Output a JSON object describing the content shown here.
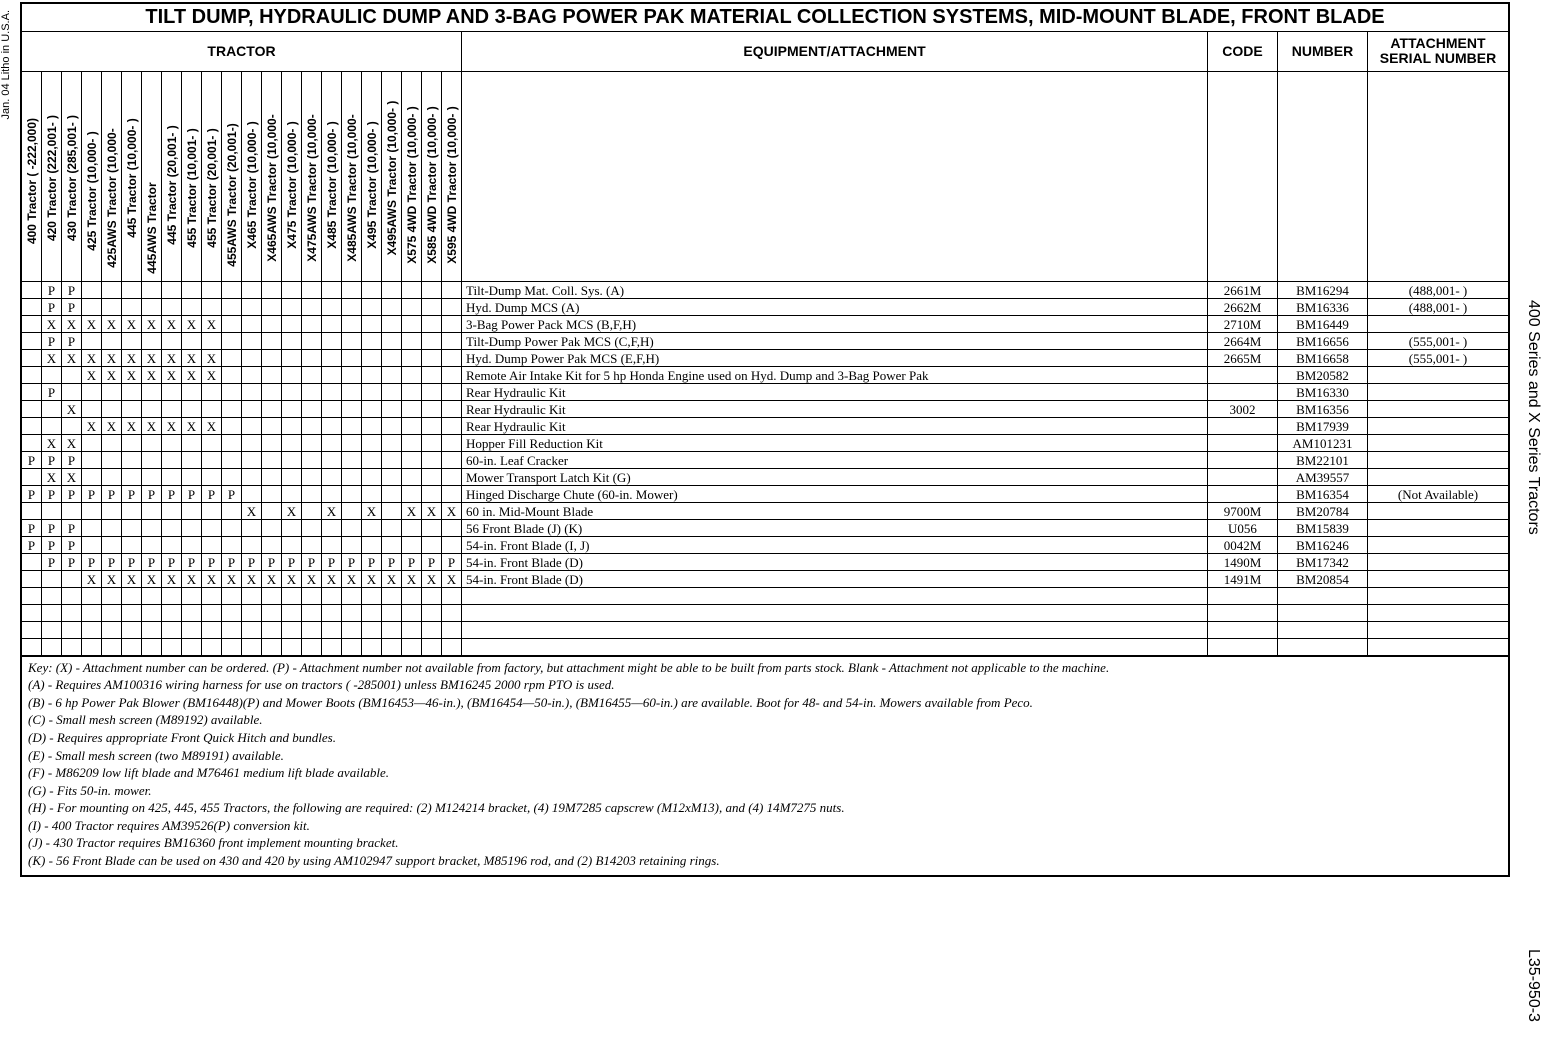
{
  "side": {
    "left_top": "Jan. 04 Litho in U.S.A.",
    "right_top": "400 Series and X Series Tractors",
    "right_bottom": "L35-950-3"
  },
  "title": "TILT DUMP, HYDRAULIC DUMP AND 3-BAG POWER PAK MATERIAL COLLECTION SYSTEMS, MID-MOUNT BLADE, FRONT BLADE",
  "headers": {
    "tractor": "TRACTOR",
    "equipment": "EQUIPMENT/ATTACHMENT",
    "code": "CODE",
    "number": "NUMBER",
    "serial": "ATTACHMENT SERIAL NUMBER"
  },
  "tractor_cols": [
    "400 Tractor (      -222,000)",
    "420 Tractor (222,001-       )",
    "430 Tractor (285,001-       )",
    "425 Tractor   (10,000-  )",
    "425AWS Tractor (10,000-",
    "445 Tractor   (10,000-      )",
    "445AWS Tractor",
    "445 Tractor (20,001-      )",
    "455 Tractor (10,001-     )",
    "455 Tractor (20,001-     )",
    "455AWS Tractor (20,001-)",
    "X465 Tractor   (10,000-   )",
    "X465AWS Tractor   (10,000-",
    "X475 Tractor   (10,000-   )",
    "X475AWS Tractor   (10,000-",
    "X485 Tractor   (10,000-   )",
    "X485AWS Tractor   (10,000-",
    "X495 Tractor   (10,000-   )",
    "X495AWS Tractor   (10,000-  )",
    "X575 4WD Tractor (10,000- )",
    "X585 4WD Tractor (10,000- )",
    "X595 4WD Tractor (10,000- )"
  ],
  "rows": [
    {
      "m": [
        "",
        "P",
        "P",
        "",
        "",
        "",
        "",
        "",
        "",
        "",
        "",
        "",
        "",
        "",
        "",
        "",
        "",
        "",
        "",
        "",
        "",
        ""
      ],
      "equip": "Tilt-Dump Mat. Coll. Sys. (A)",
      "code": "2661M",
      "num": "BM16294",
      "ser": "(488,001- )"
    },
    {
      "m": [
        "",
        "P",
        "P",
        "",
        "",
        "",
        "",
        "",
        "",
        "",
        "",
        "",
        "",
        "",
        "",
        "",
        "",
        "",
        "",
        "",
        "",
        ""
      ],
      "equip": "Hyd. Dump MCS (A)",
      "code": "2662M",
      "num": "BM16336",
      "ser": "(488,001- )"
    },
    {
      "m": [
        "",
        "X",
        "X",
        "X",
        "X",
        "X",
        "X",
        "X",
        "X",
        "X",
        "",
        "",
        "",
        "",
        "",
        "",
        "",
        "",
        "",
        "",
        "",
        ""
      ],
      "equip": "3-Bag Power Pack MCS (B,F,H)",
      "code": "2710M",
      "num": "BM16449",
      "ser": ""
    },
    {
      "m": [
        "",
        "P",
        "P",
        "",
        "",
        "",
        "",
        "",
        "",
        "",
        "",
        "",
        "",
        "",
        "",
        "",
        "",
        "",
        "",
        "",
        "",
        ""
      ],
      "equip": "Tilt-Dump Power Pak MCS (C,F,H)",
      "code": "2664M",
      "num": "BM16656",
      "ser": "(555,001-           )"
    },
    {
      "m": [
        "",
        "X",
        "X",
        "X",
        "X",
        "X",
        "X",
        "X",
        "X",
        "X",
        "",
        "",
        "",
        "",
        "",
        "",
        "",
        "",
        "",
        "",
        "",
        ""
      ],
      "equip": "Hyd. Dump Power Pak MCS (E,F,H)",
      "code": "2665M",
      "num": "BM16658",
      "ser": "(555,001-           )"
    },
    {
      "m": [
        "",
        "",
        "",
        "X",
        "X",
        "X",
        "X",
        "X",
        "X",
        "X",
        "",
        "",
        "",
        "",
        "",
        "",
        "",
        "",
        "",
        "",
        "",
        ""
      ],
      "equip": "Remote Air Intake Kit for 5 hp Honda Engine used on Hyd. Dump and 3-Bag Power Pak",
      "code": "",
      "num": "BM20582",
      "ser": ""
    },
    {
      "m": [
        "",
        "P",
        "",
        "",
        "",
        "",
        "",
        "",
        "",
        "",
        "",
        "",
        "",
        "",
        "",
        "",
        "",
        "",
        "",
        "",
        "",
        ""
      ],
      "equip": "Rear Hydraulic Kit",
      "code": "",
      "num": "BM16330",
      "ser": ""
    },
    {
      "m": [
        "",
        "",
        "X",
        "",
        "",
        "",
        "",
        "",
        "",
        "",
        "",
        "",
        "",
        "",
        "",
        "",
        "",
        "",
        "",
        "",
        "",
        ""
      ],
      "equip": "Rear Hydraulic Kit",
      "code": "3002",
      "num": "BM16356",
      "ser": ""
    },
    {
      "m": [
        "",
        "",
        "",
        "X",
        "X",
        "X",
        "X",
        "X",
        "X",
        "X",
        "",
        "",
        "",
        "",
        "",
        "",
        "",
        "",
        "",
        "",
        "",
        ""
      ],
      "equip": "Rear Hydraulic Kit",
      "code": "",
      "num": "BM17939",
      "ser": ""
    },
    {
      "m": [
        "",
        "X",
        "X",
        "",
        "",
        "",
        "",
        "",
        "",
        "",
        "",
        "",
        "",
        "",
        "",
        "",
        "",
        "",
        "",
        "",
        "",
        ""
      ],
      "equip": "Hopper Fill Reduction Kit",
      "code": "",
      "num": "AM101231",
      "ser": ""
    },
    {
      "m": [
        "P",
        "P",
        "P",
        "",
        "",
        "",
        "",
        "",
        "",
        "",
        "",
        "",
        "",
        "",
        "",
        "",
        "",
        "",
        "",
        "",
        "",
        ""
      ],
      "equip": "60-in. Leaf Cracker",
      "code": "",
      "num": "BM22101",
      "ser": ""
    },
    {
      "m": [
        "",
        "X",
        "X",
        "",
        "",
        "",
        "",
        "",
        "",
        "",
        "",
        "",
        "",
        "",
        "",
        "",
        "",
        "",
        "",
        "",
        "",
        ""
      ],
      "equip": "Mower Transport Latch Kit (G)",
      "code": "",
      "num": "AM39557",
      "ser": ""
    },
    {
      "m": [
        "P",
        "P",
        "P",
        "P",
        "P",
        "P",
        "P",
        "P",
        "P",
        "P",
        "P",
        "",
        "",
        "",
        "",
        "",
        "",
        "",
        "",
        "",
        "",
        ""
      ],
      "equip": "Hinged Discharge Chute (60-in. Mower)",
      "code": "",
      "num": "BM16354",
      "ser": "(Not Available)"
    },
    {
      "m": [
        "",
        "",
        "",
        "",
        "",
        "",
        "",
        "",
        "",
        "",
        "",
        "X",
        "",
        "X",
        "",
        "X",
        "",
        "X",
        "",
        "X",
        "X",
        "X"
      ],
      "equip": "60 in. Mid-Mount Blade",
      "code": "9700M",
      "num": "BM20784",
      "ser": ""
    },
    {
      "m": [
        "P",
        "P",
        "P",
        "",
        "",
        "",
        "",
        "",
        "",
        "",
        "",
        "",
        "",
        "",
        "",
        "",
        "",
        "",
        "",
        "",
        "",
        ""
      ],
      "equip": "56 Front Blade (J) (K)",
      "code": "U056",
      "num": "BM15839",
      "ser": ""
    },
    {
      "m": [
        "P",
        "P",
        "P",
        "",
        "",
        "",
        "",
        "",
        "",
        "",
        "",
        "",
        "",
        "",
        "",
        "",
        "",
        "",
        "",
        "",
        "",
        ""
      ],
      "equip": "54-in. Front Blade (I, J)",
      "code": "0042M",
      "num": "BM16246",
      "ser": ""
    },
    {
      "m": [
        "",
        "P",
        "P",
        "P",
        "P",
        "P",
        "P",
        "P",
        "P",
        "P",
        "P",
        "P",
        "P",
        "P",
        "P",
        "P",
        "P",
        "P",
        "P",
        "P",
        "P",
        "P"
      ],
      "equip": "54-in. Front Blade (D)",
      "code": "1490M",
      "num": "BM17342",
      "ser": ""
    },
    {
      "m": [
        "",
        "",
        "",
        "X",
        "X",
        "X",
        "X",
        "X",
        "X",
        "X",
        "X",
        "X",
        "X",
        "X",
        "X",
        "X",
        "X",
        "X",
        "X",
        "X",
        "X",
        "X"
      ],
      "equip": "54-in. Front Blade (D)",
      "code": "1491M",
      "num": "BM20854",
      "ser": ""
    },
    {
      "m": [
        "",
        "",
        "",
        "",
        "",
        "",
        "",
        "",
        "",
        "",
        "",
        "",
        "",
        "",
        "",
        "",
        "",
        "",
        "",
        "",
        "",
        ""
      ],
      "equip": "",
      "code": "",
      "num": "",
      "ser": ""
    },
    {
      "m": [
        "",
        "",
        "",
        "",
        "",
        "",
        "",
        "",
        "",
        "",
        "",
        "",
        "",
        "",
        "",
        "",
        "",
        "",
        "",
        "",
        "",
        ""
      ],
      "equip": "",
      "code": "",
      "num": "",
      "ser": ""
    },
    {
      "m": [
        "",
        "",
        "",
        "",
        "",
        "",
        "",
        "",
        "",
        "",
        "",
        "",
        "",
        "",
        "",
        "",
        "",
        "",
        "",
        "",
        "",
        ""
      ],
      "equip": "",
      "code": "",
      "num": "",
      "ser": ""
    },
    {
      "m": [
        "",
        "",
        "",
        "",
        "",
        "",
        "",
        "",
        "",
        "",
        "",
        "",
        "",
        "",
        "",
        "",
        "",
        "",
        "",
        "",
        "",
        ""
      ],
      "equip": "",
      "code": "",
      "num": "",
      "ser": ""
    }
  ],
  "notes": [
    "Key: (X) - Attachment number can be ordered. (P) - Attachment number not available from factory, but attachment might be able to be built from parts stock. Blank - Attachment not applicable to the machine.",
    "(A) -   Requires AM100316 wiring harness for use on tractors (        -285001) unless BM16245 2000 rpm PTO is used.",
    "(B) -   6 hp Power Pak Blower (BM16448)(P) and Mower Boots (BM16453—46-in.), (BM16454—50-in.), (BM16455—60-in.) are available. Boot for 48- and 54-in. Mowers available from Peco.",
    "(C) -   Small mesh screen (M89192) available.",
    "(D) -   Requires appropriate Front Quick Hitch and bundles.",
    "(E) -   Small mesh screen (two M89191) available.",
    "(F) -   M86209 low lift blade and M76461 medium lift blade available.",
    "(G) -   Fits 50-in. mower.",
    "(H) -   For mounting on 425, 445, 455 Tractors, the following are required: (2) M124214 bracket, (4) 19M7285 capscrew (M12xM13), and (4) 14M7275 nuts.",
    "(I) -    400 Tractor requires AM39526(P) conversion kit.",
    "(J) -    430 Tractor requires BM16360 front implement mounting bracket.",
    "(K) -   56 Front Blade can be used on 430 and 420 by using AM102947 support bracket, M85196 rod, and (2) B14203 retaining rings."
  ]
}
